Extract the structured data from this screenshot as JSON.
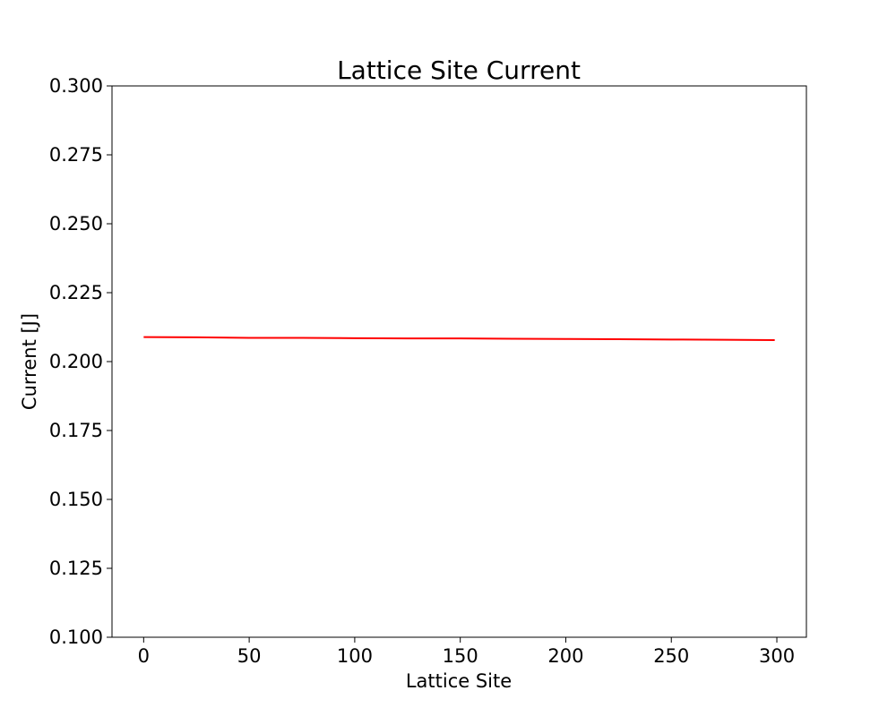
{
  "chart_data": {
    "type": "line",
    "title": "Lattice Site Current",
    "xlabel": "Lattice Site",
    "ylabel": "Current [J]",
    "xlim": [
      -15,
      314
    ],
    "ylim": [
      0.1,
      0.3
    ],
    "xticks": [
      0,
      50,
      100,
      150,
      200,
      250,
      300
    ],
    "yticks": [
      "0.100",
      "0.125",
      "0.150",
      "0.175",
      "0.200",
      "0.225",
      "0.250",
      "0.275",
      "0.300"
    ],
    "grid": false,
    "series": [
      {
        "color": "#ff0000",
        "x": [
          0,
          25,
          50,
          75,
          100,
          125,
          150,
          175,
          200,
          225,
          250,
          275,
          299
        ],
        "y": [
          0.2089,
          0.2088,
          0.2086,
          0.2086,
          0.2085,
          0.2084,
          0.2084,
          0.2083,
          0.2082,
          0.2081,
          0.208,
          0.2079,
          0.2078
        ]
      }
    ]
  }
}
